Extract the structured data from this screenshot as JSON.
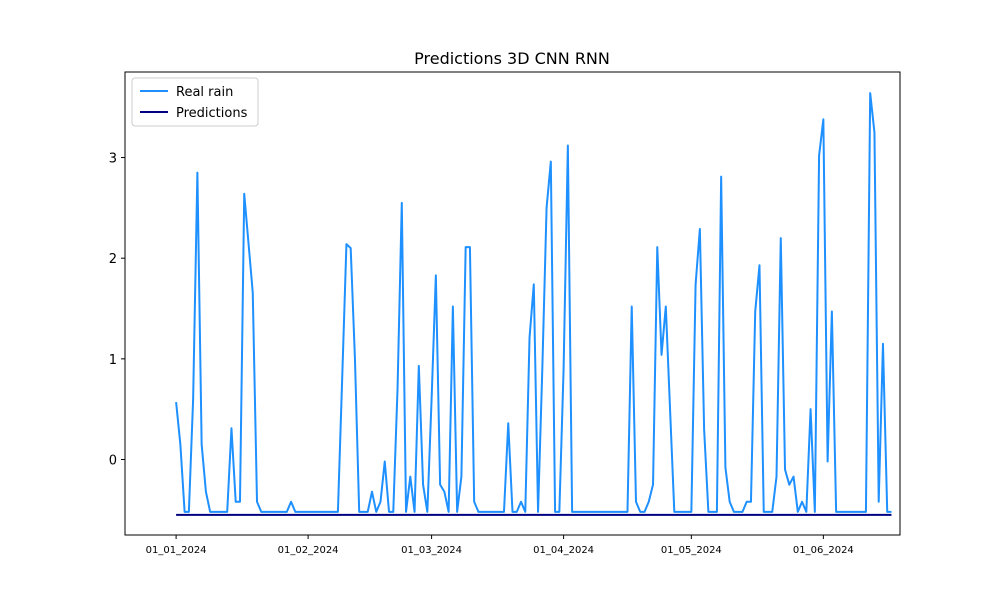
{
  "chart_data": {
    "type": "line",
    "title": "Predictions 3D CNN RNN",
    "xlabel": "",
    "ylabel": "",
    "x_range": [
      "2023-12-20",
      "2024-06-19"
    ],
    "ylim": [
      -0.75,
      3.85
    ],
    "x_ticks": [
      {
        "date": "2024-01-01",
        "label": "01_01_2024"
      },
      {
        "date": "2024-02-01",
        "label": "01_02_2024"
      },
      {
        "date": "2024-03-01",
        "label": "01_03_2024"
      },
      {
        "date": "2024-04-01",
        "label": "01_04_2024"
      },
      {
        "date": "2024-05-01",
        "label": "01_05_2024"
      },
      {
        "date": "2024-06-01",
        "label": "01_06_2024"
      }
    ],
    "y_ticks": [
      0,
      1,
      2,
      3
    ],
    "grid": false,
    "legend_position": "upper-left",
    "series": [
      {
        "name": "Real rain",
        "color": "#1e90ff",
        "points": [
          [
            "2024-01-01",
            0.57
          ],
          [
            "2024-01-02",
            0.15
          ],
          [
            "2024-01-03",
            -0.52
          ],
          [
            "2024-01-04",
            -0.52
          ],
          [
            "2024-01-05",
            0.6
          ],
          [
            "2024-01-06",
            2.85
          ],
          [
            "2024-01-07",
            0.15
          ],
          [
            "2024-01-08",
            -0.32
          ],
          [
            "2024-01-09",
            -0.52
          ],
          [
            "2024-01-10",
            -0.52
          ],
          [
            "2024-01-11",
            -0.52
          ],
          [
            "2024-01-12",
            -0.52
          ],
          [
            "2024-01-13",
            -0.52
          ],
          [
            "2024-01-14",
            0.31
          ],
          [
            "2024-01-15",
            -0.42
          ],
          [
            "2024-01-16",
            -0.42
          ],
          [
            "2024-01-17",
            2.64
          ],
          [
            "2024-01-18",
            2.15
          ],
          [
            "2024-01-19",
            1.66
          ],
          [
            "2024-01-20",
            -0.42
          ],
          [
            "2024-01-21",
            -0.52
          ],
          [
            "2024-01-22",
            -0.52
          ],
          [
            "2024-01-23",
            -0.52
          ],
          [
            "2024-01-24",
            -0.52
          ],
          [
            "2024-01-25",
            -0.52
          ],
          [
            "2024-01-26",
            -0.52
          ],
          [
            "2024-01-27",
            -0.52
          ],
          [
            "2024-01-28",
            -0.42
          ],
          [
            "2024-01-29",
            -0.52
          ],
          [
            "2024-01-30",
            -0.52
          ],
          [
            "2024-01-31",
            -0.52
          ],
          [
            "2024-02-01",
            -0.52
          ],
          [
            "2024-02-02",
            -0.52
          ],
          [
            "2024-02-03",
            -0.52
          ],
          [
            "2024-02-04",
            -0.52
          ],
          [
            "2024-02-05",
            -0.52
          ],
          [
            "2024-02-06",
            -0.52
          ],
          [
            "2024-02-07",
            -0.52
          ],
          [
            "2024-02-08",
            -0.52
          ],
          [
            "2024-02-09",
            0.8
          ],
          [
            "2024-02-10",
            2.14
          ],
          [
            "2024-02-11",
            2.1
          ],
          [
            "2024-02-12",
            1.0
          ],
          [
            "2024-02-13",
            -0.52
          ],
          [
            "2024-02-14",
            -0.52
          ],
          [
            "2024-02-15",
            -0.52
          ],
          [
            "2024-02-16",
            -0.32
          ],
          [
            "2024-02-17",
            -0.52
          ],
          [
            "2024-02-18",
            -0.42
          ],
          [
            "2024-02-19",
            -0.02
          ],
          [
            "2024-02-20",
            -0.52
          ],
          [
            "2024-02-21",
            -0.52
          ],
          [
            "2024-02-22",
            0.7
          ],
          [
            "2024-02-23",
            2.55
          ],
          [
            "2024-02-24",
            -0.52
          ],
          [
            "2024-02-25",
            -0.17
          ],
          [
            "2024-02-26",
            -0.52
          ],
          [
            "2024-02-27",
            0.93
          ],
          [
            "2024-02-28",
            -0.25
          ],
          [
            "2024-02-29",
            -0.52
          ],
          [
            "2024-03-01",
            0.6
          ],
          [
            "2024-03-02",
            1.83
          ],
          [
            "2024-03-03",
            -0.25
          ],
          [
            "2024-03-04",
            -0.32
          ],
          [
            "2024-03-05",
            -0.52
          ],
          [
            "2024-03-06",
            1.52
          ],
          [
            "2024-03-07",
            -0.52
          ],
          [
            "2024-03-08",
            -0.17
          ],
          [
            "2024-03-09",
            2.11
          ],
          [
            "2024-03-10",
            2.11
          ],
          [
            "2024-03-11",
            -0.42
          ],
          [
            "2024-03-12",
            -0.52
          ],
          [
            "2024-03-13",
            -0.52
          ],
          [
            "2024-03-14",
            -0.52
          ],
          [
            "2024-03-15",
            -0.52
          ],
          [
            "2024-03-16",
            -0.52
          ],
          [
            "2024-03-17",
            -0.52
          ],
          [
            "2024-03-18",
            -0.52
          ],
          [
            "2024-03-19",
            0.36
          ],
          [
            "2024-03-20",
            -0.52
          ],
          [
            "2024-03-21",
            -0.52
          ],
          [
            "2024-03-22",
            -0.42
          ],
          [
            "2024-03-23",
            -0.52
          ],
          [
            "2024-03-24",
            1.21
          ],
          [
            "2024-03-25",
            1.74
          ],
          [
            "2024-03-26",
            -0.52
          ],
          [
            "2024-03-27",
            0.9
          ],
          [
            "2024-03-28",
            2.5
          ],
          [
            "2024-03-29",
            2.96
          ],
          [
            "2024-03-30",
            -0.52
          ],
          [
            "2024-03-31",
            -0.52
          ],
          [
            "2024-04-01",
            0.9
          ],
          [
            "2024-04-02",
            3.12
          ],
          [
            "2024-04-03",
            -0.52
          ],
          [
            "2024-04-04",
            -0.52
          ],
          [
            "2024-04-05",
            -0.52
          ],
          [
            "2024-04-06",
            -0.52
          ],
          [
            "2024-04-07",
            -0.52
          ],
          [
            "2024-04-08",
            -0.52
          ],
          [
            "2024-04-09",
            -0.52
          ],
          [
            "2024-04-10",
            -0.52
          ],
          [
            "2024-04-11",
            -0.52
          ],
          [
            "2024-04-12",
            -0.52
          ],
          [
            "2024-04-13",
            -0.52
          ],
          [
            "2024-04-14",
            -0.52
          ],
          [
            "2024-04-15",
            -0.52
          ],
          [
            "2024-04-16",
            -0.52
          ],
          [
            "2024-04-17",
            1.52
          ],
          [
            "2024-04-18",
            -0.42
          ],
          [
            "2024-04-19",
            -0.52
          ],
          [
            "2024-04-20",
            -0.52
          ],
          [
            "2024-04-21",
            -0.42
          ],
          [
            "2024-04-22",
            -0.25
          ],
          [
            "2024-04-23",
            2.11
          ],
          [
            "2024-04-24",
            1.04
          ],
          [
            "2024-04-25",
            1.52
          ],
          [
            "2024-04-26",
            0.5
          ],
          [
            "2024-04-27",
            -0.52
          ],
          [
            "2024-04-28",
            -0.52
          ],
          [
            "2024-04-29",
            -0.52
          ],
          [
            "2024-04-30",
            -0.52
          ],
          [
            "2024-05-01",
            -0.52
          ],
          [
            "2024-05-02",
            1.74
          ],
          [
            "2024-05-03",
            2.29
          ],
          [
            "2024-05-04",
            0.3
          ],
          [
            "2024-05-05",
            -0.52
          ],
          [
            "2024-05-06",
            -0.52
          ],
          [
            "2024-05-07",
            -0.52
          ],
          [
            "2024-05-08",
            2.81
          ],
          [
            "2024-05-09",
            -0.08
          ],
          [
            "2024-05-10",
            -0.42
          ],
          [
            "2024-05-11",
            -0.52
          ],
          [
            "2024-05-12",
            -0.52
          ],
          [
            "2024-05-13",
            -0.52
          ],
          [
            "2024-05-14",
            -0.42
          ],
          [
            "2024-05-15",
            -0.42
          ],
          [
            "2024-05-16",
            1.47
          ],
          [
            "2024-05-17",
            1.93
          ],
          [
            "2024-05-18",
            -0.52
          ],
          [
            "2024-05-19",
            -0.52
          ],
          [
            "2024-05-20",
            -0.52
          ],
          [
            "2024-05-21",
            -0.17
          ],
          [
            "2024-05-22",
            2.2
          ],
          [
            "2024-05-23",
            -0.1
          ],
          [
            "2024-05-24",
            -0.25
          ],
          [
            "2024-05-25",
            -0.17
          ],
          [
            "2024-05-26",
            -0.52
          ],
          [
            "2024-05-27",
            -0.42
          ],
          [
            "2024-05-28",
            -0.52
          ],
          [
            "2024-05-29",
            0.5
          ],
          [
            "2024-05-30",
            -0.52
          ],
          [
            "2024-05-31",
            3.02
          ],
          [
            "2024-06-01",
            3.38
          ],
          [
            "2024-06-02",
            -0.02
          ],
          [
            "2024-06-03",
            1.47
          ],
          [
            "2024-06-04",
            -0.52
          ],
          [
            "2024-06-05",
            -0.52
          ],
          [
            "2024-06-06",
            -0.52
          ],
          [
            "2024-06-07",
            -0.52
          ],
          [
            "2024-06-08",
            -0.52
          ],
          [
            "2024-06-09",
            -0.52
          ],
          [
            "2024-06-10",
            -0.52
          ],
          [
            "2024-06-11",
            -0.52
          ],
          [
            "2024-06-12",
            3.64
          ],
          [
            "2024-06-13",
            3.25
          ],
          [
            "2024-06-14",
            -0.42
          ],
          [
            "2024-06-15",
            1.15
          ],
          [
            "2024-06-16",
            -0.52
          ],
          [
            "2024-06-17",
            -0.52
          ]
        ]
      },
      {
        "name": "Predictions",
        "color": "#000080",
        "points": [
          [
            "2024-01-01",
            -0.55
          ],
          [
            "2024-06-17",
            -0.55
          ]
        ]
      }
    ]
  }
}
